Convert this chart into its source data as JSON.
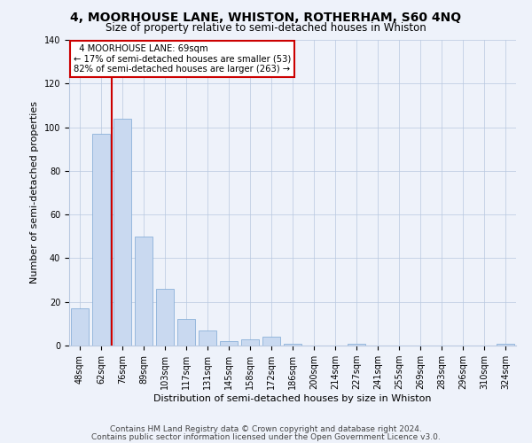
{
  "title": "4, MOORHOUSE LANE, WHISTON, ROTHERHAM, S60 4NQ",
  "subtitle": "Size of property relative to semi-detached houses in Whiston",
  "xlabel": "Distribution of semi-detached houses by size in Whiston",
  "ylabel": "Number of semi-detached properties",
  "categories": [
    "48sqm",
    "62sqm",
    "76sqm",
    "89sqm",
    "103sqm",
    "117sqm",
    "131sqm",
    "145sqm",
    "158sqm",
    "172sqm",
    "186sqm",
    "200sqm",
    "214sqm",
    "227sqm",
    "241sqm",
    "255sqm",
    "269sqm",
    "283sqm",
    "296sqm",
    "310sqm",
    "324sqm"
  ],
  "bar_heights": [
    17,
    97,
    104,
    50,
    26,
    12,
    7,
    2,
    3,
    4,
    1,
    0,
    0,
    1,
    0,
    0,
    0,
    0,
    0,
    0,
    1
  ],
  "vline_x": 1.5,
  "annotation_title": "4 MOORHOUSE LANE: 69sqm",
  "annotation_line1": "← 17% of semi-detached houses are smaller (53)",
  "annotation_line2": "82% of semi-detached houses are larger (263) →",
  "bar_color": "#c9d9f0",
  "bar_edge_color": "#7ba7d4",
  "vline_color": "#cc0000",
  "annotation_box_color": "#ffffff",
  "annotation_box_edge": "#cc0000",
  "ylim": [
    0,
    140
  ],
  "yticks": [
    0,
    20,
    40,
    60,
    80,
    100,
    120,
    140
  ],
  "footer1": "Contains HM Land Registry data © Crown copyright and database right 2024.",
  "footer2": "Contains public sector information licensed under the Open Government Licence v3.0.",
  "bg_color": "#eef2fa",
  "title_fontsize": 10,
  "subtitle_fontsize": 8.5,
  "tick_label_fontsize": 7,
  "axis_label_fontsize": 8,
  "footer_fontsize": 6.5
}
